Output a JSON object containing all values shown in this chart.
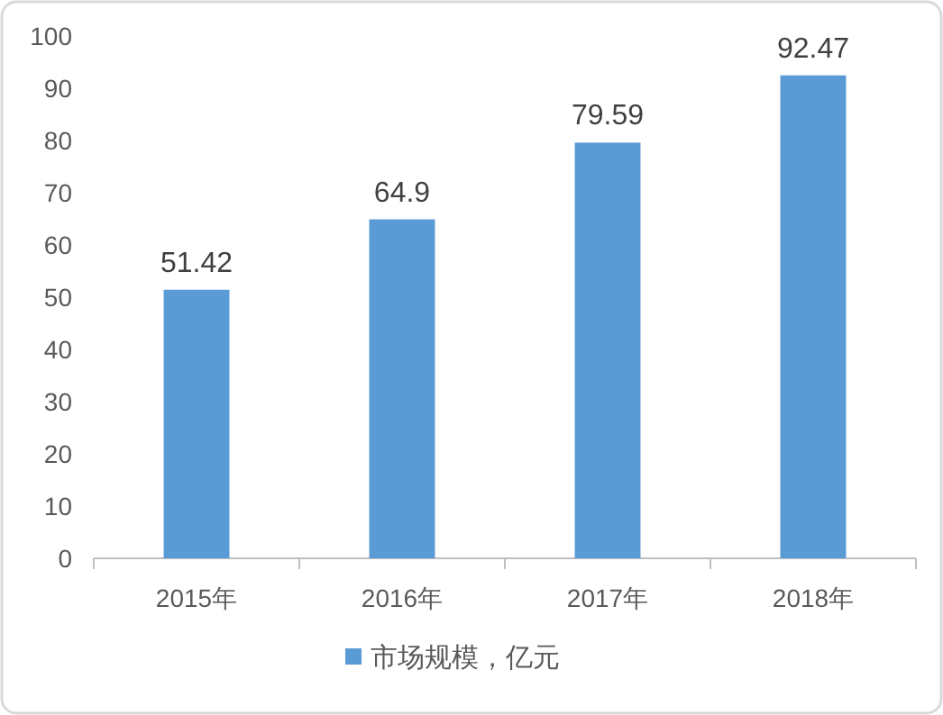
{
  "chart_data": {
    "type": "bar",
    "categories": [
      "2015年",
      "2016年",
      "2017年",
      "2018年"
    ],
    "series": [
      {
        "name": "市场规模，亿元",
        "color": "#5b9bd5",
        "values": [
          51.42,
          64.9,
          79.59,
          92.47
        ]
      }
    ],
    "ylim": [
      0,
      100
    ],
    "yticks": [
      0,
      10,
      20,
      30,
      40,
      50,
      60,
      70,
      80,
      90,
      100
    ],
    "data_labels": true,
    "legend": "bottom"
  }
}
